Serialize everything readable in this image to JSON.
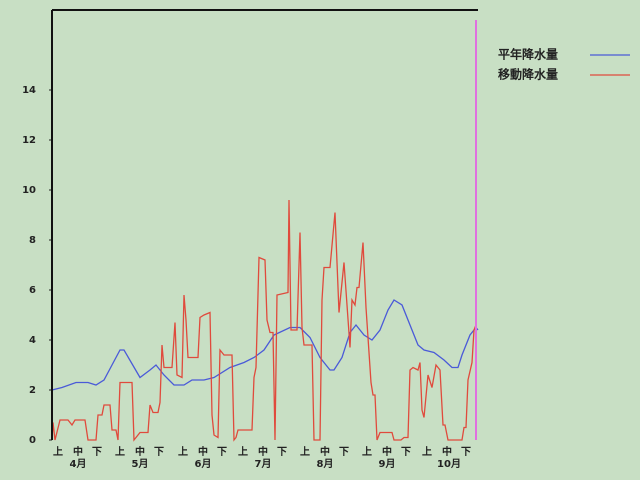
{
  "chart_data": {
    "type": "line",
    "series": [
      {
        "name": "平年降水量",
        "color": "#4a5ad8",
        "x": [
          0,
          5,
          12,
          18,
          22,
          26,
          30,
          34,
          36,
          44,
          49,
          52,
          56,
          61,
          66,
          70,
          76,
          81,
          89,
          96,
          101,
          106,
          111,
          119,
          124,
          129,
          134,
          139,
          141,
          145,
          149,
          152,
          156,
          160,
          164,
          168,
          171,
          175,
          179,
          183,
          186,
          191,
          196,
          200,
          203,
          205,
          209,
          212,
          213
        ],
        "values": [
          2.0,
          2.1,
          2.3,
          2.3,
          2.2,
          2.4,
          3.0,
          3.6,
          3.6,
          2.5,
          2.8,
          3.0,
          2.6,
          2.2,
          2.2,
          2.4,
          2.4,
          2.5,
          2.9,
          3.1,
          3.3,
          3.6,
          4.2,
          4.5,
          4.5,
          4.1,
          3.3,
          2.8,
          2.8,
          3.3,
          4.3,
          4.6,
          4.2,
          4.0,
          4.4,
          5.2,
          5.6,
          5.4,
          4.6,
          3.8,
          3.6,
          3.5,
          3.2,
          2.9,
          2.9,
          3.4,
          4.2,
          4.5,
          4.4
        ]
      },
      {
        "name": "移動降水量",
        "color": "#e04a3c",
        "x": [
          0,
          0.5,
          1.5,
          4,
          8,
          10,
          11.5,
          16.5,
          18,
          22,
          23,
          25,
          26,
          29,
          30,
          32,
          33,
          34,
          40,
          41,
          44,
          48,
          49,
          50.5,
          53,
          54,
          55,
          56,
          60,
          61.5,
          62.5,
          65,
          66,
          67,
          68,
          73,
          74,
          76,
          79,
          80,
          81,
          83,
          84,
          85,
          86,
          90,
          91,
          92,
          93,
          100,
          101,
          102,
          103.5,
          106.5,
          107.5,
          109,
          110.5,
          111.5,
          112.5,
          118,
          118.5,
          119.5,
          122.5,
          124,
          125,
          126,
          130,
          131,
          134,
          135,
          136,
          139,
          141.5,
          143.5,
          146,
          149,
          150,
          151.5,
          152.5,
          153.5,
          155.5,
          157,
          159.5,
          160.5,
          161.5,
          162.5,
          164,
          170,
          171,
          174.5,
          176,
          178,
          179,
          180.5,
          183,
          184,
          185,
          186,
          188,
          190,
          192,
          194,
          195.5,
          196.5,
          198,
          205,
          206,
          207,
          208,
          210,
          211,
          212
        ],
        "values": [
          0,
          0.7,
          0,
          0.8,
          0.8,
          0.6,
          0.8,
          0.8,
          0,
          0,
          1.0,
          1.0,
          1.4,
          1.4,
          0.4,
          0.4,
          0,
          2.3,
          2.3,
          0,
          0.3,
          0.3,
          1.4,
          1.1,
          1.1,
          1.5,
          3.8,
          2.9,
          2.9,
          4.7,
          2.6,
          2.5,
          5.8,
          4.8,
          3.3,
          3.3,
          4.9,
          5.0,
          5.1,
          1.0,
          0.2,
          0.1,
          3.6,
          3.5,
          3.4,
          3.4,
          0,
          0.1,
          0.4,
          0.4,
          2.5,
          2.9,
          7.3,
          7.2,
          4.8,
          4.3,
          4.3,
          0,
          5.8,
          5.9,
          9.6,
          4.4,
          4.4,
          8.3,
          4.5,
          3.8,
          3.8,
          0,
          0,
          5.6,
          6.9,
          6.9,
          9.1,
          5.1,
          7.1,
          3.7,
          5.6,
          5.4,
          6.1,
          6.1,
          7.9,
          5.3,
          2.3,
          1.8,
          1.8,
          0,
          0.3,
          0.3,
          0,
          0,
          0.1,
          0.1,
          2.8,
          2.9,
          2.8,
          3.1,
          1.2,
          0.9,
          2.6,
          2.1,
          3.0,
          2.8,
          0.6,
          0.6,
          0,
          0,
          0.5,
          0.5,
          2.4,
          3.1,
          4.4,
          4.6
        ]
      }
    ],
    "xlim": [
      0,
      213
    ],
    "ylim": [
      0,
      17.2
    ],
    "yticks": [
      0,
      2,
      4,
      6,
      8,
      10,
      12,
      14
    ],
    "xticks": [
      {
        "value": 3,
        "label": "上"
      },
      {
        "value": 13,
        "label": "中"
      },
      {
        "value": 22.5,
        "label": "下"
      },
      {
        "value": 34,
        "label": "上"
      },
      {
        "value": 44,
        "label": "中"
      },
      {
        "value": 53.5,
        "label": "下"
      },
      {
        "value": 65.5,
        "label": "上"
      },
      {
        "value": 75.5,
        "label": "中"
      },
      {
        "value": 85,
        "label": "下"
      },
      {
        "value": 95.5,
        "label": "上"
      },
      {
        "value": 105.5,
        "label": "中"
      },
      {
        "value": 115,
        "label": "下"
      },
      {
        "value": 126.5,
        "label": "上"
      },
      {
        "value": 136.5,
        "label": "中"
      },
      {
        "value": 146,
        "label": "下"
      },
      {
        "value": 157.5,
        "label": "上"
      },
      {
        "value": 167.5,
        "label": "中"
      },
      {
        "value": 177,
        "label": "下"
      },
      {
        "value": 187.5,
        "label": "上"
      },
      {
        "value": 197.5,
        "label": "中"
      },
      {
        "value": 207,
        "label": "下"
      }
    ],
    "x_group_labels": [
      {
        "value": 13,
        "label": "4月"
      },
      {
        "value": 44,
        "label": "5月"
      },
      {
        "value": 75.5,
        "label": "6月"
      },
      {
        "value": 105.5,
        "label": "7月"
      },
      {
        "value": 136.5,
        "label": "8月"
      },
      {
        "value": 167.5,
        "label": "9月"
      },
      {
        "value": 198.5,
        "label": "10月"
      }
    ],
    "marker": {
      "x": 212,
      "color": "#e070e0"
    },
    "grid": false,
    "legend": "top-right"
  }
}
